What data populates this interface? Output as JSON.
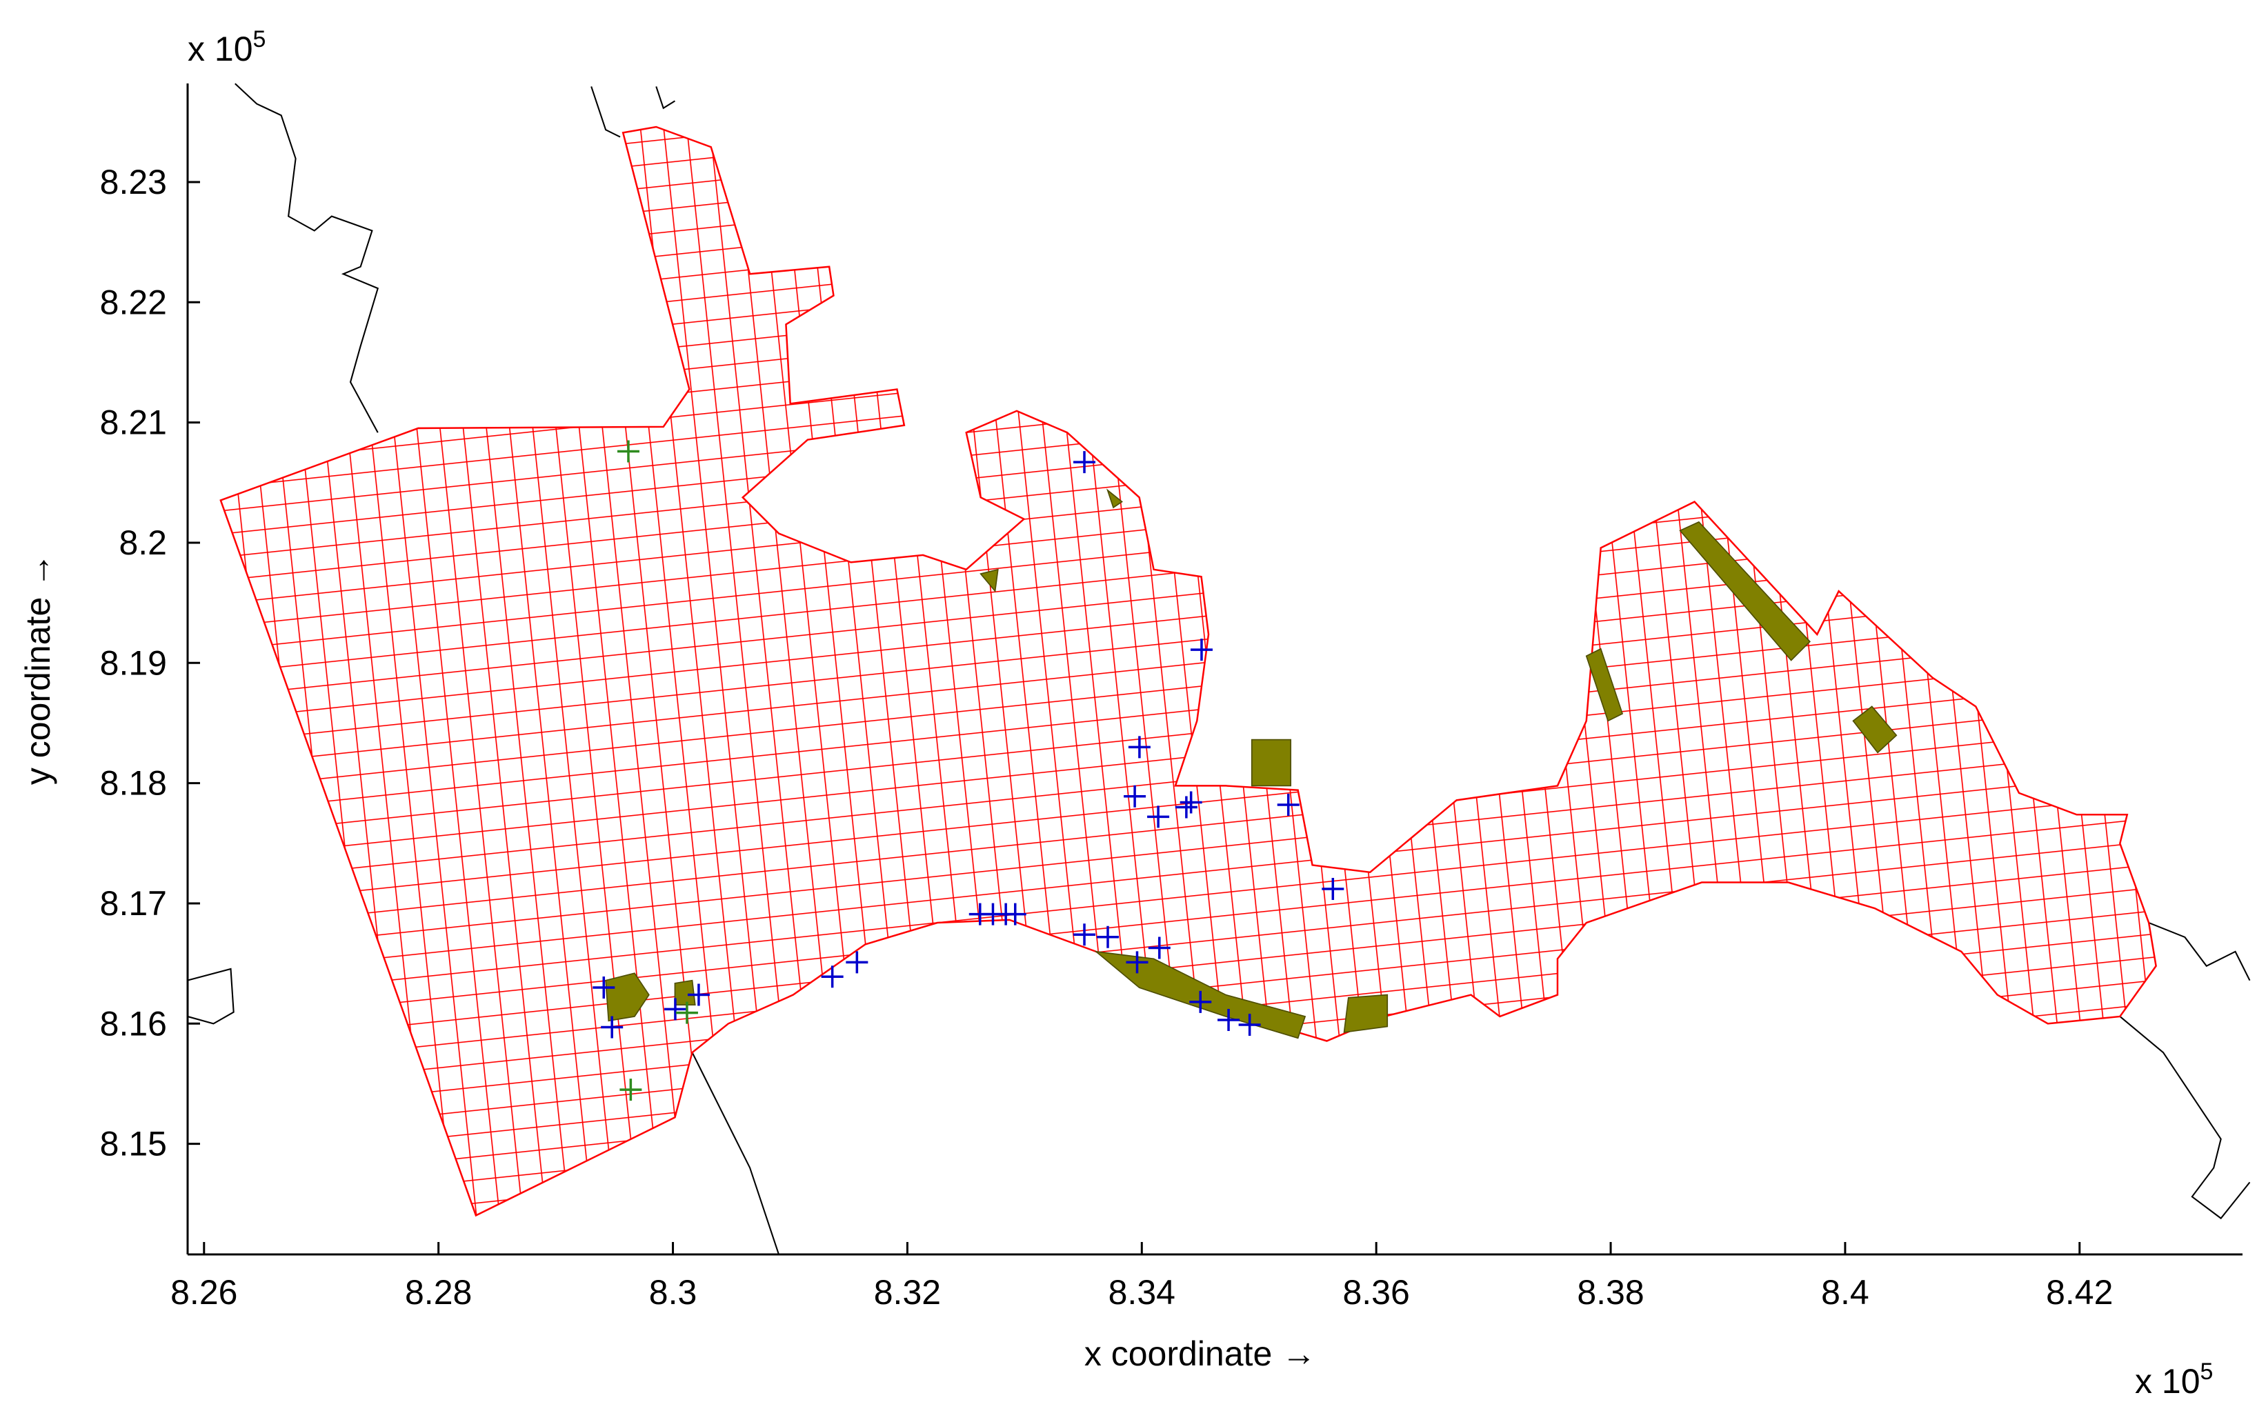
{
  "chart_data": {
    "type": "scatter",
    "xlabel": "x coordinate →",
    "ylabel": "y coordinate →",
    "x_multiplier": {
      "base": "x 10",
      "power": "5"
    },
    "y_multiplier": {
      "base": "x 10",
      "power": "5"
    },
    "xlim": [
      8.2586,
      8.4339
    ],
    "ylim": [
      8.1408,
      8.2382
    ],
    "xticks": [
      8.26,
      8.28,
      8.3,
      8.32,
      8.34,
      8.36,
      8.38,
      8.4,
      8.42
    ],
    "yticks": [
      8.15,
      8.16,
      8.17,
      8.18,
      8.19,
      8.2,
      8.21,
      8.22,
      8.23
    ],
    "grid": false,
    "series": [
      {
        "color": "#0000cc",
        "marker": "+",
        "x": [
          8.3351,
          8.3451,
          8.3398,
          8.3394,
          8.3414,
          8.3438,
          8.3442,
          8.3525,
          8.3563,
          8.2941,
          8.2948,
          8.3002,
          8.3022,
          8.3136,
          8.3157,
          8.3262,
          8.3273,
          8.3284,
          8.3292,
          8.3351,
          8.3371,
          8.3396,
          8.3415,
          8.345,
          8.3474,
          8.3492
        ],
        "y": [
          8.2067,
          8.1911,
          8.183,
          8.1789,
          8.1772,
          8.178,
          8.1784,
          8.1782,
          8.1712,
          8.163,
          8.1597,
          8.1612,
          8.1624,
          8.1639,
          8.1651,
          8.1691,
          8.1691,
          8.1691,
          8.1691,
          8.1674,
          8.1672,
          8.1651,
          8.1663,
          8.1618,
          8.1603,
          8.1599
        ]
      },
      {
        "color": "#2e8b1e",
        "marker": "+",
        "x": [
          8.2962,
          8.2964,
          8.3012
        ],
        "y": [
          8.2076,
          8.1545,
          8.1609
        ]
      }
    ]
  }
}
